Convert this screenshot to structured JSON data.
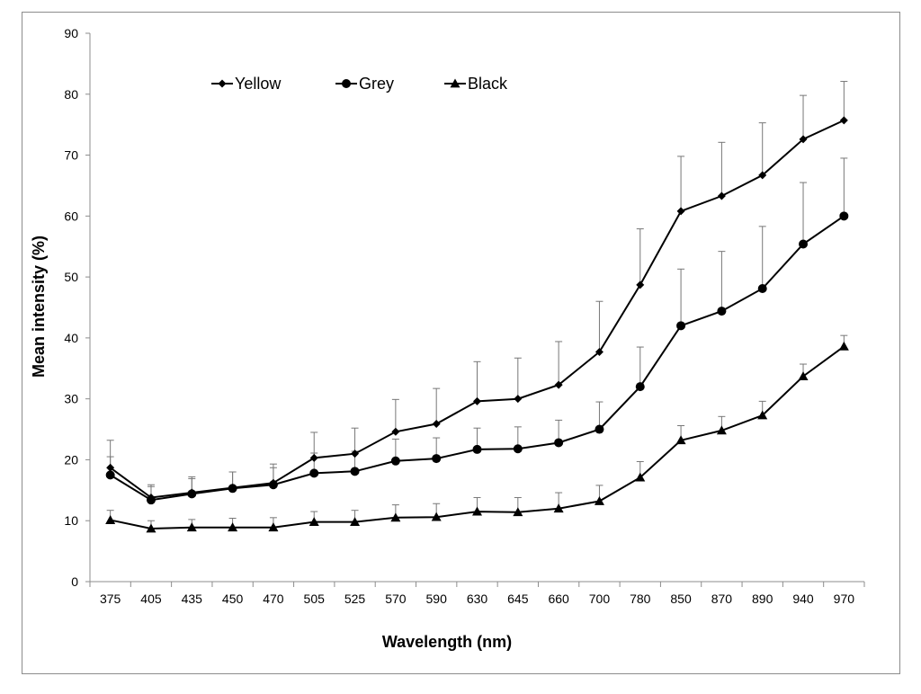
{
  "chart_data": {
    "type": "line",
    "title": "",
    "xlabel": "Wavelength (nm)",
    "ylabel": "Mean intensity (%)",
    "ylim": [
      0,
      90
    ],
    "yticks": [
      "0",
      "10",
      "20",
      "30",
      "40",
      "50",
      "60",
      "70",
      "80",
      "90"
    ],
    "categories": [
      "375",
      "405",
      "435",
      "450",
      "470",
      "505",
      "525",
      "570",
      "590",
      "630",
      "645",
      "660",
      "700",
      "780",
      "850",
      "870",
      "890",
      "940",
      "970"
    ],
    "grid": false,
    "legend_position": "top",
    "series": [
      {
        "name": "Yellow",
        "marker": "diamond",
        "values": [
          18.7,
          13.8,
          14.6,
          15.4,
          16.2,
          20.3,
          21.0,
          24.6,
          25.9,
          29.6,
          30.0,
          32.3,
          37.7,
          48.7,
          60.8,
          63.3,
          66.7,
          72.6,
          75.7
        ],
        "error_plus": [
          4.5,
          2.1,
          2.6,
          2.6,
          3.1,
          4.2,
          4.2,
          5.3,
          5.8,
          6.5,
          6.7,
          7.1,
          8.3,
          9.2,
          9.0,
          8.8,
          8.6,
          7.2,
          6.4
        ]
      },
      {
        "name": "Grey",
        "marker": "circle",
        "values": [
          17.5,
          13.4,
          14.4,
          15.3,
          15.9,
          17.8,
          18.1,
          19.8,
          20.2,
          21.7,
          21.8,
          22.8,
          25.0,
          32.0,
          42.0,
          44.4,
          48.1,
          55.4,
          60.0
        ],
        "error_plus": [
          3.0,
          2.2,
          2.5,
          2.7,
          2.8,
          3.3,
          3.3,
          3.6,
          3.4,
          3.5,
          3.6,
          3.7,
          4.5,
          6.5,
          9.3,
          9.8,
          10.2,
          10.1,
          9.5
        ]
      },
      {
        "name": "Black",
        "marker": "triangle",
        "values": [
          10.1,
          8.7,
          8.9,
          8.9,
          8.9,
          9.8,
          9.8,
          10.5,
          10.6,
          11.5,
          11.4,
          12.0,
          13.2,
          17.1,
          23.2,
          24.8,
          27.3,
          33.7,
          38.6
        ],
        "error_plus": [
          1.6,
          1.3,
          1.3,
          1.5,
          1.6,
          1.7,
          1.9,
          2.1,
          2.2,
          2.3,
          2.4,
          2.6,
          2.6,
          2.6,
          2.4,
          2.3,
          2.3,
          2.0,
          1.8
        ]
      }
    ]
  }
}
